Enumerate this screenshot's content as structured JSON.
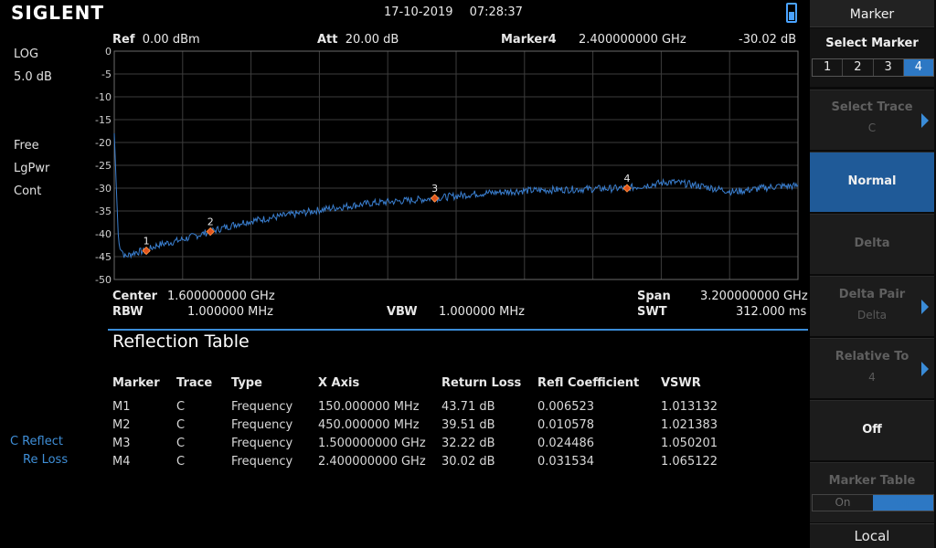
{
  "header": {
    "brand": "SIGLENT",
    "date": "17-10-2019",
    "time": "07:28:37",
    "usb_icon": "usb-storage-icon"
  },
  "left_status": {
    "scale_type": "LOG",
    "scale_div": "5.0 dB",
    "trigger": "Free",
    "detector": "LgPwr",
    "sweep": "Cont",
    "trace_letter": "C",
    "trace_label": "Reflect",
    "trace_mode": "Re Loss"
  },
  "plot_info": {
    "ref_label": "Ref",
    "ref_value": "0.00 dBm",
    "att_label": "Att",
    "att_value": "20.00 dB",
    "marker_label": "Marker4",
    "marker_freq": "2.400000000 GHz",
    "marker_level": "-30.02 dB"
  },
  "bottom_info": {
    "center_label": "Center",
    "center_value": "1.600000000 GHz",
    "rbw_label": "RBW",
    "rbw_value": "1.000000 MHz",
    "vbw_label": "VBW",
    "vbw_value": "1.000000 MHz",
    "span_label": "Span",
    "span_value": "3.200000000 GHz",
    "swt_label": "SWT",
    "swt_value": "312.000 ms"
  },
  "chart_data": {
    "type": "line",
    "y_ticks": [
      "0",
      "-5",
      "-10",
      "-15",
      "-20",
      "-25",
      "-30",
      "-35",
      "-40",
      "-45",
      "-50"
    ],
    "ylim": [
      -50,
      0
    ],
    "xlim_ghz": [
      0,
      3.2
    ],
    "grid": true,
    "trace_color": "#3a7fd0",
    "marker_color": "#e0521c",
    "series": [
      {
        "x": [
          0.0,
          0.02,
          0.05,
          0.1,
          0.15,
          0.2,
          0.3,
          0.45,
          0.6,
          0.8,
          1.0,
          1.2,
          1.4,
          1.5,
          1.7,
          1.9,
          2.1,
          2.3,
          2.4,
          2.6,
          2.7,
          2.9,
          3.1,
          3.2
        ],
        "y": [
          -18,
          -42,
          -45,
          -44,
          -43.7,
          -42.5,
          -41.5,
          -39.5,
          -37.5,
          -36,
          -34.5,
          -33.3,
          -32.6,
          -32.2,
          -31.2,
          -30.6,
          -30.3,
          -30.1,
          -30.0,
          -28.6,
          -29.2,
          -30.8,
          -29.6,
          -29.5
        ]
      }
    ],
    "markers": [
      {
        "label": "1",
        "x": 0.15,
        "y": -43.71
      },
      {
        "label": "2",
        "x": 0.45,
        "y": -39.51
      },
      {
        "label": "3",
        "x": 1.5,
        "y": -32.22
      },
      {
        "label": "4",
        "x": 2.4,
        "y": -30.02
      }
    ]
  },
  "table": {
    "title": "Reflection Table",
    "headers": [
      "Marker",
      "Trace",
      "Type",
      "X Axis",
      "Return Loss",
      "Refl Coefficient",
      "VSWR"
    ],
    "rows": [
      [
        "M1",
        "C",
        "Frequency",
        "150.000000 MHz",
        "43.71 dB",
        "0.006523",
        "1.013132"
      ],
      [
        "M2",
        "C",
        "Frequency",
        "450.000000 MHz",
        "39.51 dB",
        "0.010578",
        "1.021383"
      ],
      [
        "M3",
        "C",
        "Frequency",
        "1.500000000 GHz",
        "32.22 dB",
        "0.024486",
        "1.050201"
      ],
      [
        "M4",
        "C",
        "Frequency",
        "2.400000000 GHz",
        "30.02 dB",
        "0.031534",
        "1.065122"
      ]
    ]
  },
  "softkeys": {
    "title": "Marker",
    "select_marker": "Select Marker",
    "marker_numbers": [
      "1",
      "2",
      "3",
      "4"
    ],
    "selected_marker": "4",
    "select_trace": "Select Trace",
    "select_trace_value": "C",
    "normal": "Normal",
    "delta": "Delta",
    "delta_pair": "Delta Pair",
    "delta_pair_value": "Delta",
    "relative_to": "Relative To",
    "relative_to_value": "4",
    "off": "Off",
    "marker_table": "Marker Table",
    "marker_table_on": "On",
    "marker_table_off": "Off",
    "local": "Local"
  }
}
